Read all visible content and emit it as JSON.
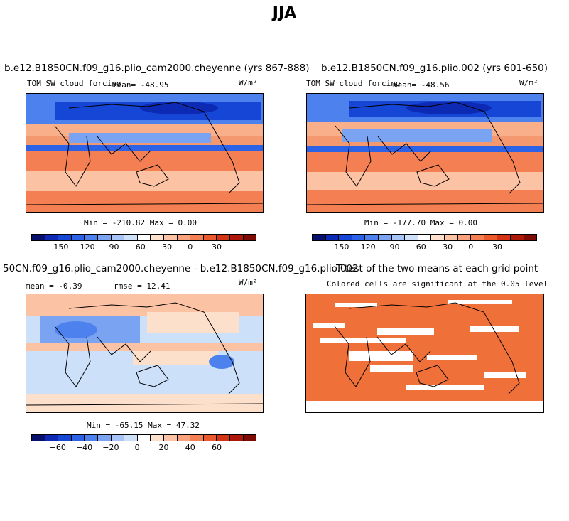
{
  "figure": {
    "title": "JJA"
  },
  "panels": {
    "p1": {
      "title": "b.e12.B1850CN.f09_g16.plio_cam2000.cheyenne (yrs 867-888)",
      "left_label": "TOM SW cloud forcing",
      "mean_label": "mean= -48.95",
      "units": "W/m²",
      "minmax": "Min = -210.82 Max =   0.00"
    },
    "p2": {
      "title": "b.e12.B1850CN.f09_g16.plio.002 (yrs 601-650)",
      "left_label": "TOM SW cloud forcing",
      "mean_label": "mean= -48.56",
      "units": "W/m²",
      "minmax": "Min = -177.70 Max =   0.00"
    },
    "p3": {
      "title": "50CN.f09_g16.plio_cam2000.cheyenne - b.e12.B1850CN.f09_g16.plio.002",
      "mean_label": "mean =  -0.39",
      "rmse_label": "rmse =  12.41",
      "units": "W/m²",
      "minmax": "Min = -65.15 Max =  47.32"
    },
    "p4": {
      "title": "T-test of the two means at each grid point",
      "subtitle": "Colored cells are significant at the 0.05 level",
      "sig_color": "#f0703a"
    }
  },
  "colorbars": {
    "field": {
      "colors": [
        "#08106e",
        "#0c2ab4",
        "#1646d6",
        "#2c62e6",
        "#4d82ee",
        "#7aa4f2",
        "#a6c4f6",
        "#cde0fa",
        "#ffffff",
        "#fde0cc",
        "#fbc2a4",
        "#f9a27c",
        "#f47f52",
        "#ea5a2c",
        "#d43414",
        "#ae1808",
        "#7e0a04"
      ],
      "ticks": [
        "-150",
        "-120",
        "-90",
        "-60",
        "-30",
        "0",
        "30"
      ]
    },
    "diff": {
      "colors": [
        "#08106e",
        "#0c2ab4",
        "#1646d6",
        "#2c62e6",
        "#4d82ee",
        "#7aa4f2",
        "#a6c4f6",
        "#cde0fa",
        "#ffffff",
        "#fde0cc",
        "#fbc2a4",
        "#f9a27c",
        "#f47f52",
        "#ea5a2c",
        "#d43414",
        "#ae1808",
        "#7e0a04"
      ],
      "ticks": [
        "-60",
        "-40",
        "-20",
        "0",
        "20",
        "40",
        "60"
      ]
    }
  }
}
